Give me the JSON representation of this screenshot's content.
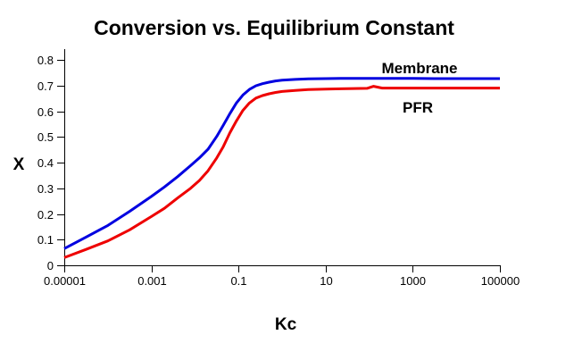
{
  "chart_data": {
    "type": "line",
    "title": "Conversion vs. Equilibrium Constant",
    "xlabel": "Kc",
    "ylabel": "X",
    "x_scale": "log10",
    "xlim_log10": [
      -5,
      5
    ],
    "ylim": [
      0,
      0.8
    ],
    "grid": false,
    "legend_position": "inline-labels-right",
    "background_color": "#FFFFFF",
    "axis_color": "#000000",
    "x_ticks": [
      {
        "log10": -5,
        "label": "0.00001"
      },
      {
        "log10": -3,
        "label": "0.001"
      },
      {
        "log10": -1,
        "label": "0.1"
      },
      {
        "log10": 1,
        "label": "10"
      },
      {
        "log10": 3,
        "label": "1000"
      },
      {
        "log10": 5,
        "label": "100000"
      }
    ],
    "y_ticks": [
      {
        "value": 0.0,
        "label": "0"
      },
      {
        "value": 0.1,
        "label": "0.1"
      },
      {
        "value": 0.2,
        "label": "0.2"
      },
      {
        "value": 0.3,
        "label": "0.3"
      },
      {
        "value": 0.4,
        "label": "0.4"
      },
      {
        "value": 0.5,
        "label": "0.5"
      },
      {
        "value": 0.6,
        "label": "0.6"
      },
      {
        "value": 0.7,
        "label": "0.7"
      },
      {
        "value": 0.8,
        "label": "0.8"
      }
    ],
    "series": [
      {
        "name": "Membrane",
        "color": "#0000E0",
        "points_log10kc_x": [
          [
            -5,
            0.065
          ],
          [
            -4.5,
            0.11
          ],
          [
            -4,
            0.155
          ],
          [
            -3.5,
            0.21
          ],
          [
            -3,
            0.268
          ],
          [
            -2.7,
            0.305
          ],
          [
            -2.4,
            0.345
          ],
          [
            -2.1,
            0.388
          ],
          [
            -1.9,
            0.418
          ],
          [
            -1.7,
            0.452
          ],
          [
            -1.5,
            0.502
          ],
          [
            -1.35,
            0.545
          ],
          [
            -1.2,
            0.59
          ],
          [
            -1.05,
            0.632
          ],
          [
            -0.9,
            0.663
          ],
          [
            -0.75,
            0.685
          ],
          [
            -0.6,
            0.699
          ],
          [
            -0.45,
            0.707
          ],
          [
            -0.3,
            0.713
          ],
          [
            -0.15,
            0.718
          ],
          [
            0,
            0.721
          ],
          [
            0.3,
            0.724
          ],
          [
            0.6,
            0.726
          ],
          [
            1,
            0.727
          ],
          [
            1.5,
            0.728
          ],
          [
            2,
            0.728
          ],
          [
            2.5,
            0.728
          ],
          [
            3,
            0.728
          ],
          [
            3.5,
            0.727
          ],
          [
            4,
            0.727
          ],
          [
            4.5,
            0.727
          ],
          [
            5,
            0.727
          ]
        ]
      },
      {
        "name": "PFR",
        "color": "#EE0000",
        "points_log10kc_x": [
          [
            -5,
            0.03
          ],
          [
            -4.5,
            0.062
          ],
          [
            -4,
            0.095
          ],
          [
            -3.5,
            0.138
          ],
          [
            -3,
            0.19
          ],
          [
            -2.7,
            0.222
          ],
          [
            -2.4,
            0.262
          ],
          [
            -2.1,
            0.3
          ],
          [
            -1.9,
            0.33
          ],
          [
            -1.7,
            0.368
          ],
          [
            -1.5,
            0.418
          ],
          [
            -1.35,
            0.462
          ],
          [
            -1.2,
            0.515
          ],
          [
            -1.05,
            0.562
          ],
          [
            -0.9,
            0.603
          ],
          [
            -0.75,
            0.632
          ],
          [
            -0.6,
            0.651
          ],
          [
            -0.45,
            0.661
          ],
          [
            -0.3,
            0.668
          ],
          [
            -0.15,
            0.673
          ],
          [
            0,
            0.677
          ],
          [
            0.3,
            0.681
          ],
          [
            0.6,
            0.684
          ],
          [
            1,
            0.686
          ],
          [
            1.5,
            0.688
          ],
          [
            1.95,
            0.689
          ],
          [
            2.1,
            0.697
          ],
          [
            2.3,
            0.69
          ],
          [
            2.7,
            0.69
          ],
          [
            3,
            0.69
          ],
          [
            3.5,
            0.69
          ],
          [
            4,
            0.69
          ],
          [
            4.5,
            0.69
          ],
          [
            5,
            0.69
          ]
        ]
      }
    ]
  }
}
